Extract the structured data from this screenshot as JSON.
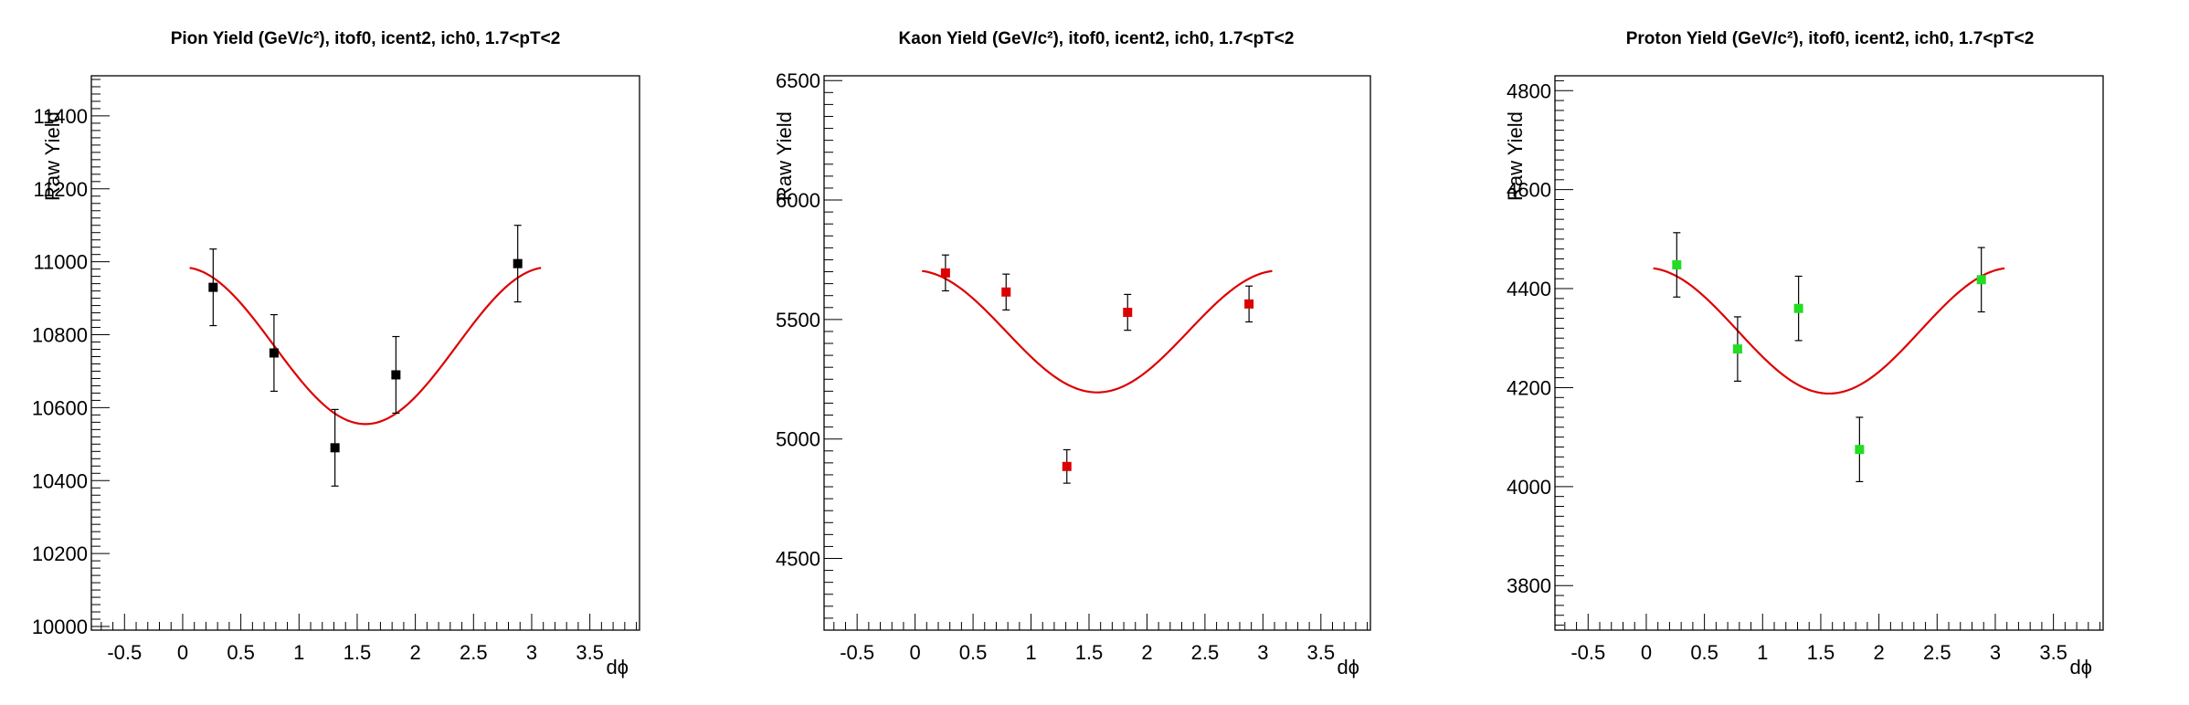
{
  "chart_data": [
    {
      "type": "scatter",
      "title": "Pion Yield (GeV/c²), itof0, icent2, ich0, 1.7<pT<2",
      "xlabel": "dϕ",
      "ylabel": "Raw Yield",
      "xlim": [
        -0.785,
        3.927
      ],
      "ylim": [
        9990,
        11510
      ],
      "xticks": [
        "-0.5",
        "0.5",
        "1",
        "1.5",
        "2",
        "2.5",
        "3",
        "3.5",
        "0"
      ],
      "yticks": [
        "10000",
        "10200",
        "10400",
        "10600",
        "10800",
        "11000",
        "11200",
        "11400"
      ],
      "marker_color": "#000000",
      "fit_color": "#dd0000",
      "points": [
        {
          "x": 0.262,
          "y": 10930,
          "err": 105
        },
        {
          "x": 0.785,
          "y": 10750,
          "err": 105
        },
        {
          "x": 1.309,
          "y": 10490,
          "err": 105
        },
        {
          "x": 1.833,
          "y": 10690,
          "err": 105
        },
        {
          "x": 2.88,
          "y": 10995,
          "err": 105
        }
      ],
      "fit": {
        "func": "a + b*cos(2x)",
        "a": 10770,
        "b": 215,
        "xrange": [
          0.06,
          3.08
        ]
      },
      "grid": false
    },
    {
      "type": "scatter",
      "title": "Kaon Yield (GeV/c²), itof0, icent2, ich0, 1.7<pT<2",
      "xlabel": "dϕ",
      "ylabel": "Raw Yield",
      "xlim": [
        -0.785,
        3.927
      ],
      "ylim": [
        4200,
        6520
      ],
      "xticks": [
        "-0.5",
        "0",
        "0.5",
        "1",
        "1.5",
        "2",
        "2.5",
        "3",
        "3.5"
      ],
      "yticks": [
        "4500",
        "5000",
        "5500",
        "6000",
        "6500"
      ],
      "marker_color": "#dd0000",
      "fit_color": "#dd0000",
      "points": [
        {
          "x": 0.262,
          "y": 5695,
          "err": 75
        },
        {
          "x": 0.785,
          "y": 5615,
          "err": 75
        },
        {
          "x": 1.309,
          "y": 4885,
          "err": 70
        },
        {
          "x": 1.833,
          "y": 5530,
          "err": 75
        },
        {
          "x": 2.88,
          "y": 5565,
          "err": 75
        }
      ],
      "fit": {
        "func": "a + b*cos(2x)",
        "a": 5450,
        "b": 255,
        "xrange": [
          0.06,
          3.08
        ]
      },
      "grid": false
    },
    {
      "type": "scatter",
      "title": "Proton Yield (GeV/c²), itof0, icent2, ich0, 1.7<pT<2",
      "xlabel": "dϕ",
      "ylabel": "Raw Yield",
      "xlim": [
        -0.785,
        3.927
      ],
      "ylim": [
        3710,
        4830
      ],
      "xticks": [
        "-0.5",
        "0",
        "0.5",
        "1",
        "1.5",
        "2",
        "2.5",
        "3",
        "3.5"
      ],
      "yticks": [
        "3800",
        "4000",
        "4200",
        "4400",
        "4600",
        "4800"
      ],
      "marker_color": "#22dd22",
      "fit_color": "#dd0000",
      "points": [
        {
          "x": 0.262,
          "y": 4448,
          "err": 65
        },
        {
          "x": 0.785,
          "y": 4278,
          "err": 65
        },
        {
          "x": 1.309,
          "y": 4360,
          "err": 65
        },
        {
          "x": 1.833,
          "y": 4075,
          "err": 65
        },
        {
          "x": 2.88,
          "y": 4418,
          "err": 65
        }
      ],
      "fit": {
        "func": "a + b*cos(2x)",
        "a": 4315,
        "b": 127,
        "xrange": [
          0.06,
          3.08
        ]
      },
      "grid": false
    }
  ]
}
